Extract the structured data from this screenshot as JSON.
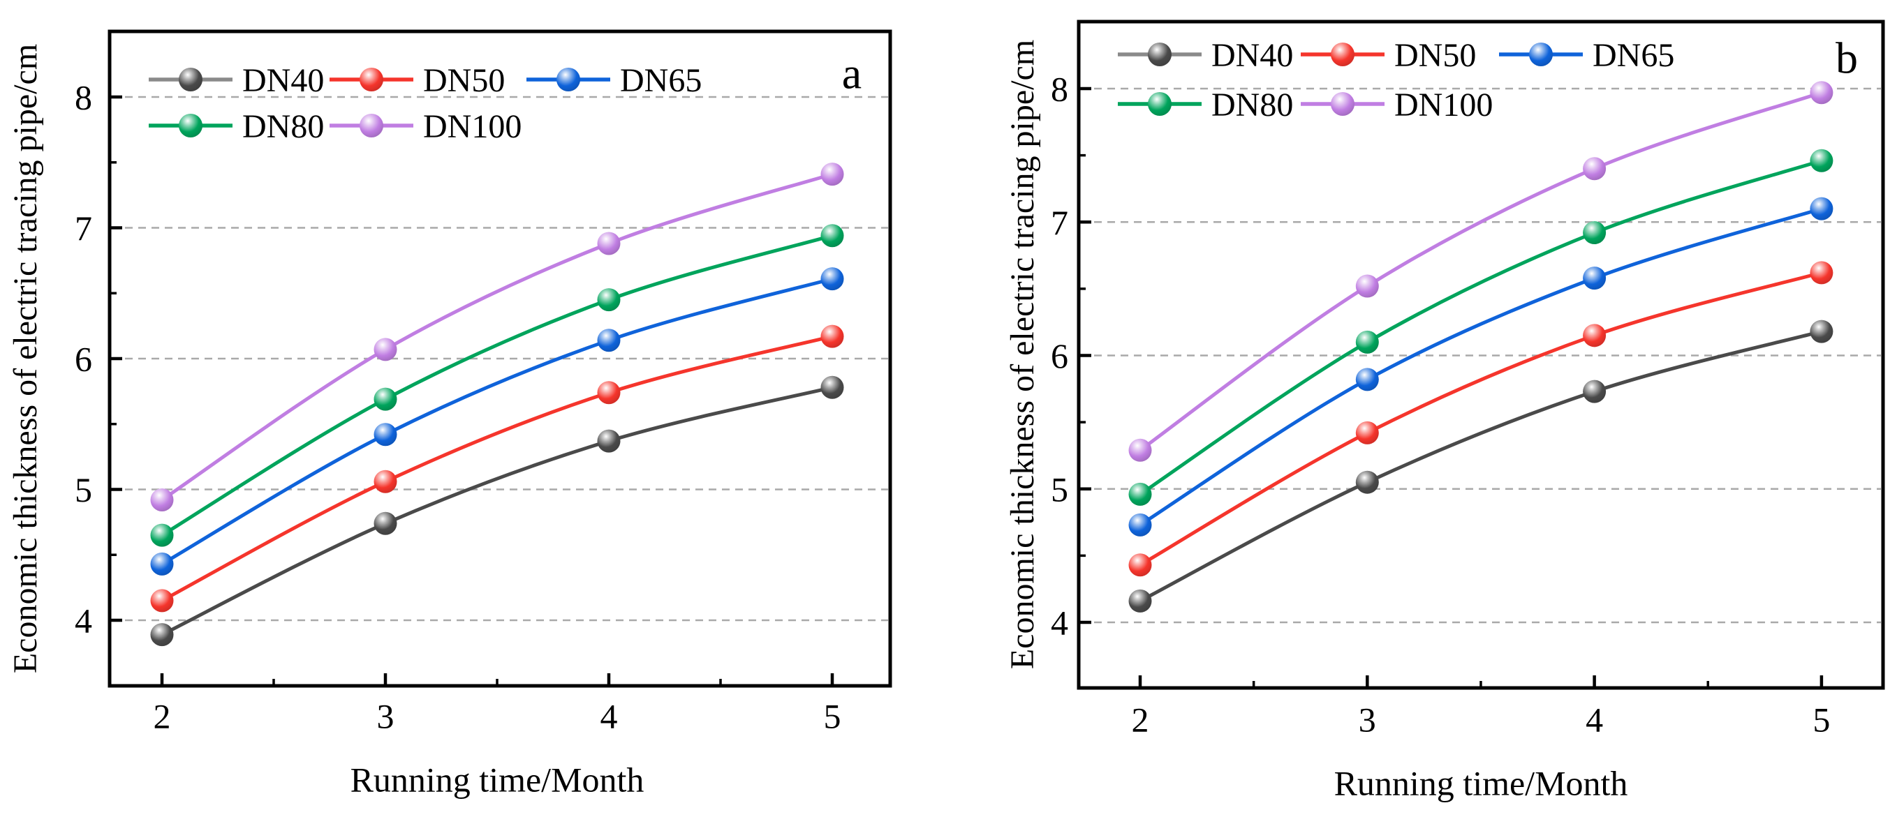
{
  "figure": {
    "background": "#ffffff",
    "grid_color": "#a9a9a9",
    "frame_color": "#000000",
    "text_color": "#000000"
  },
  "chart_data": [
    {
      "type": "line",
      "panel_label": "a",
      "title": "",
      "xlabel": "Running time/Month",
      "ylabel": "Economic thickness of electric tracing pipe/cm",
      "x": [
        2,
        3,
        4,
        5
      ],
      "xticks": [
        2,
        3,
        4,
        5
      ],
      "x_minor_ticks": [
        2.5,
        3.5,
        4.5
      ],
      "yticks": [
        4,
        5,
        6,
        7,
        8
      ],
      "y_minor_ticks": [
        4.5,
        5.5,
        6.5,
        7.5
      ],
      "xlim": [
        1.77,
        5.26
      ],
      "ylim": [
        3.5,
        8.5
      ],
      "grid": "horizontal dashed",
      "legend_position": "top-left inside",
      "legend_rows": [
        [
          0,
          1,
          2
        ],
        [
          3,
          4
        ]
      ],
      "series": [
        {
          "name": "DN40",
          "color": "#4a4a4a",
          "legend_line_color": "#8a8a8a",
          "values": [
            3.89,
            4.74,
            5.37,
            5.78
          ]
        },
        {
          "name": "DN50",
          "color": "#f5352c",
          "values": [
            4.15,
            5.06,
            5.74,
            6.17
          ]
        },
        {
          "name": "DN65",
          "color": "#0f63da",
          "values": [
            4.43,
            5.42,
            6.14,
            6.61
          ]
        },
        {
          "name": "DN80",
          "color": "#00a45c",
          "values": [
            4.65,
            5.69,
            6.45,
            6.94
          ]
        },
        {
          "name": "DN100",
          "color": "#c07ee2",
          "values": [
            4.92,
            6.07,
            6.88,
            7.41
          ]
        }
      ]
    },
    {
      "type": "line",
      "panel_label": "b",
      "title": "",
      "xlabel": "Running time/Month",
      "ylabel": "Economic thickness of electric tracing pipe/cm",
      "x": [
        2,
        3,
        4,
        5
      ],
      "xticks": [
        2,
        3,
        4,
        5
      ],
      "x_minor_ticks": [
        2.5,
        3.5,
        4.5
      ],
      "yticks": [
        4,
        5,
        6,
        7,
        8
      ],
      "y_minor_ticks": [
        4.5,
        5.5,
        6.5,
        7.5
      ],
      "xlim": [
        1.73,
        5.27
      ],
      "ylim": [
        3.5,
        8.5
      ],
      "grid": "horizontal dashed",
      "legend_position": "top-left inside",
      "legend_rows": [
        [
          0,
          1,
          2
        ],
        [
          3,
          4
        ]
      ],
      "series": [
        {
          "name": "DN40",
          "color": "#4a4a4a",
          "legend_line_color": "#8a8a8a",
          "values": [
            4.16,
            5.05,
            5.73,
            6.18
          ]
        },
        {
          "name": "DN50",
          "color": "#f5352c",
          "values": [
            4.43,
            5.42,
            6.15,
            6.62
          ]
        },
        {
          "name": "DN65",
          "color": "#0f63da",
          "values": [
            4.73,
            5.82,
            6.58,
            7.1
          ]
        },
        {
          "name": "DN80",
          "color": "#00a45c",
          "values": [
            4.96,
            6.1,
            6.92,
            7.46
          ]
        },
        {
          "name": "DN100",
          "color": "#c07ee2",
          "values": [
            5.29,
            6.52,
            7.4,
            7.97
          ]
        }
      ]
    }
  ]
}
